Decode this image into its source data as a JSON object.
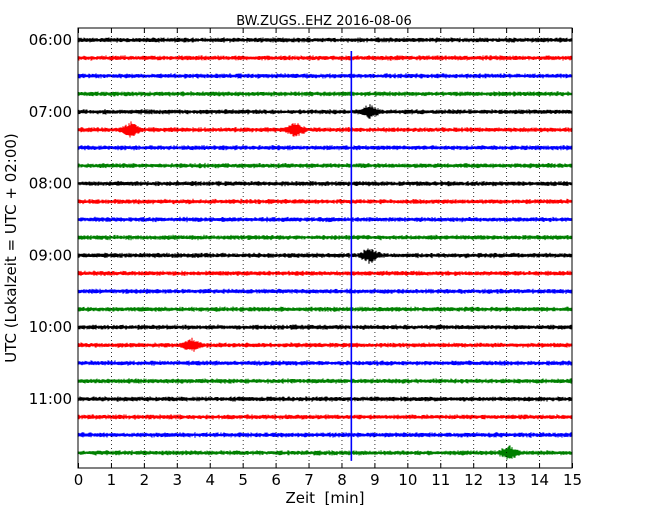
{
  "chart_data": {
    "type": "line",
    "title": "BW.ZUGS..EHZ 2016-08-06",
    "xlabel": "Zeit  [min]",
    "ylabel": "UTC (Lokalzeit = UTC + 02:00)",
    "xlim": [
      0,
      15
    ],
    "x_ticks": [
      "0",
      "1",
      "2",
      "3",
      "4",
      "5",
      "6",
      "7",
      "8",
      "9",
      "10",
      "11",
      "12",
      "13",
      "14",
      "15"
    ],
    "y_tick_labels": [
      "06:00",
      "07:00",
      "08:00",
      "09:00",
      "10:00",
      "11:00"
    ],
    "trace_interval_min": 15,
    "trace_start": "06:00",
    "trace_count": 24,
    "trace_colors": [
      "#000000",
      "#ff0000",
      "#0000ff",
      "#008000"
    ],
    "grid": "vertical-dotted",
    "event_marker": {
      "x_min": 8.3,
      "color": "#0000ff",
      "from_trace": "06:15",
      "to_trace": "11:45"
    },
    "notable_bursts": [
      {
        "trace": "07:00",
        "x_min": 8.85
      },
      {
        "trace": "09:00",
        "x_min": 8.85
      },
      {
        "trace": "11:45",
        "x_min": 13.1
      },
      {
        "trace": "07:15",
        "x_min": 1.6
      },
      {
        "trace": "07:15",
        "x_min": 6.6
      },
      {
        "trace": "10:15",
        "x_min": 3.45
      }
    ]
  }
}
